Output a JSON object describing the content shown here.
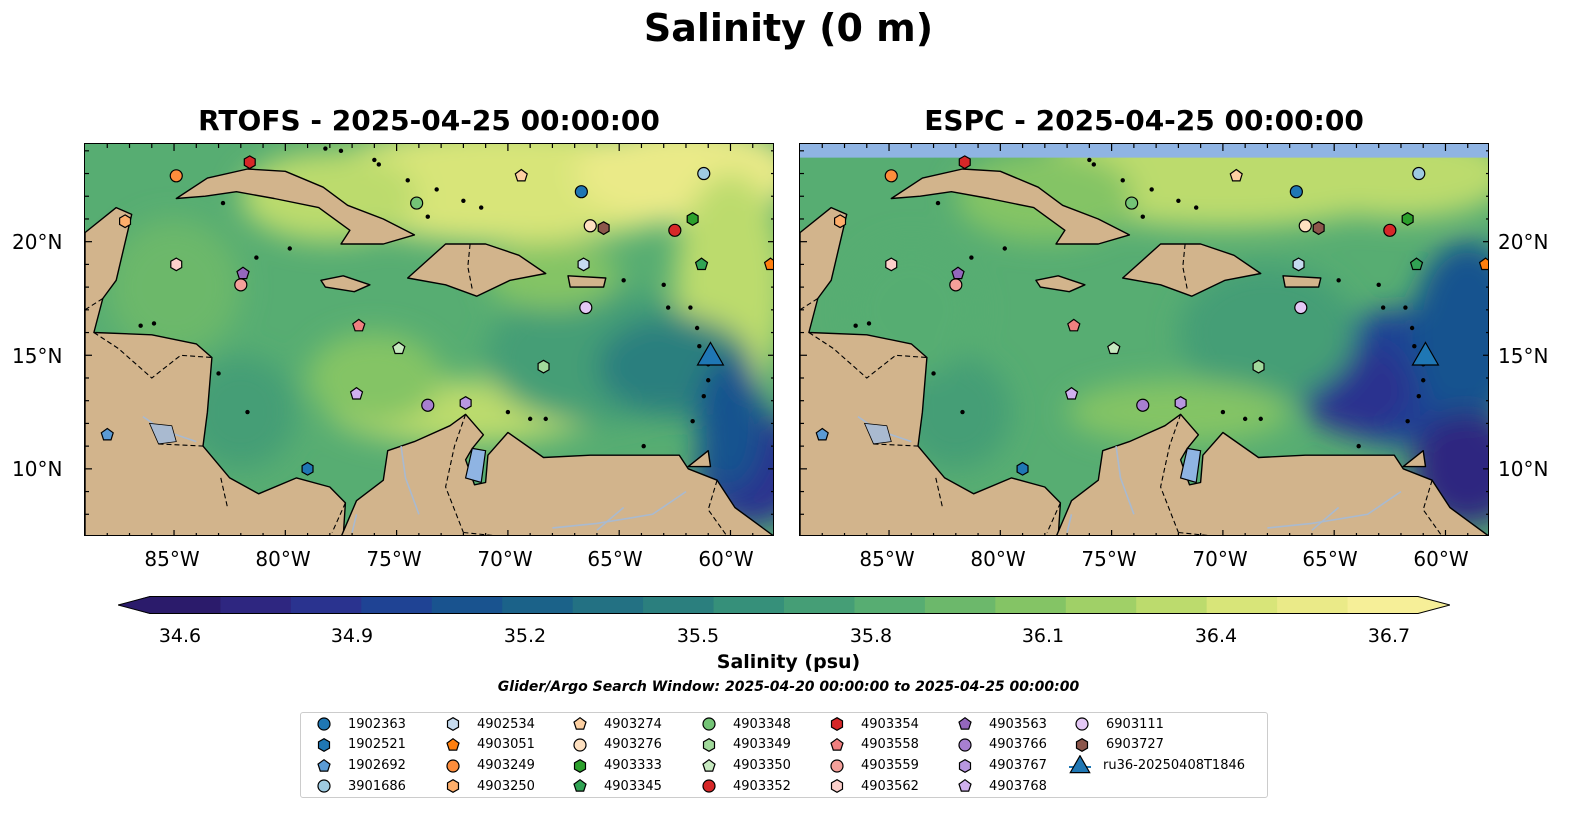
{
  "figure": {
    "suptitle": "Salinity (0 m)",
    "panels": [
      {
        "title": "RTOFS - 2025-04-25 00:00:00"
      },
      {
        "title": "ESPC - 2025-04-25 00:00:00"
      }
    ],
    "lat_ticks": [
      "20°N",
      "15°N",
      "10°N"
    ],
    "lon_ticks": [
      "85°W",
      "80°W",
      "75°W",
      "70°W",
      "65°W",
      "60°W"
    ],
    "colorbar": {
      "ticks": [
        "34.6",
        "34.9",
        "35.2",
        "35.5",
        "35.8",
        "36.1",
        "36.4",
        "36.7"
      ],
      "label": "Salinity (psu)"
    },
    "search_window": "Glider/Argo Search Window: 2025-04-20 00:00:00 to 2025-04-25 00:00:00"
  },
  "colors": {
    "land": "#d2b48c",
    "water_feature": "#8fb4e3",
    "river": "#a9bad0",
    "ocean_base": "#5aa674",
    "deep_low": "#2a1a66"
  },
  "chart_data": {
    "type": "map",
    "variable": "Salinity",
    "units": "psu",
    "depth_m": 0,
    "lon_range": [
      -89,
      -58
    ],
    "lat_range": [
      7,
      24.3
    ],
    "colorbar_range": [
      34.6,
      36.7
    ],
    "colormap": [
      "#2b1b6b",
      "#2e2680",
      "#2a338f",
      "#1f4394",
      "#19538f",
      "#1b6289",
      "#237183",
      "#2b7f7e",
      "#36907a",
      "#459e76",
      "#57ad72",
      "#6cb86b",
      "#84c465",
      "#a0d067",
      "#bcdb6d",
      "#d8e579",
      "#eaea88",
      "#f6ef98"
    ],
    "series": [
      {
        "name": "1902363",
        "marker": "circle",
        "color": "#1f77b4",
        "lon": -66.7,
        "lat": 22.2
      },
      {
        "name": "1902521",
        "marker": "hexagon",
        "color": "#1f77b4",
        "lon": -79.0,
        "lat": 10.0
      },
      {
        "name": "1902692",
        "marker": "pentagon",
        "color": "#5b9bd5",
        "lon": -88.0,
        "lat": 11.5
      },
      {
        "name": "3901686",
        "marker": "circle",
        "color": "#9ecae1",
        "lon": -61.2,
        "lat": 23.0
      },
      {
        "name": "4902534",
        "marker": "hexagon",
        "color": "#c6dbef",
        "lon": -66.6,
        "lat": 19.0
      },
      {
        "name": "4903051",
        "marker": "pentagon",
        "color": "#ff7f0e",
        "lon": -58.2,
        "lat": 19.0
      },
      {
        "name": "4903249",
        "marker": "circle",
        "color": "#fd8d3c",
        "lon": -84.9,
        "lat": 22.9
      },
      {
        "name": "4903250",
        "marker": "hexagon",
        "color": "#fdae6b",
        "lon": -87.2,
        "lat": 20.9
      },
      {
        "name": "4903274",
        "marker": "pentagon",
        "color": "#fdd0a2",
        "lon": -69.4,
        "lat": 22.9
      },
      {
        "name": "4903276",
        "marker": "circle",
        "color": "#fee0c0",
        "lon": -66.3,
        "lat": 20.7
      },
      {
        "name": "4903333",
        "marker": "hexagon",
        "color": "#2ca02c",
        "lon": -61.7,
        "lat": 21.0
      },
      {
        "name": "4903345",
        "marker": "pentagon",
        "color": "#31a354",
        "lon": -61.3,
        "lat": 19.0
      },
      {
        "name": "4903348",
        "marker": "circle",
        "color": "#74c476",
        "lon": -74.1,
        "lat": 21.7
      },
      {
        "name": "4903349",
        "marker": "hexagon",
        "color": "#a1d99b",
        "lon": -68.4,
        "lat": 14.5
      },
      {
        "name": "4903350",
        "marker": "pentagon",
        "color": "#c7e9c0",
        "lon": -74.9,
        "lat": 15.3
      },
      {
        "name": "4903352",
        "marker": "circle",
        "color": "#d62728",
        "lon": -62.5,
        "lat": 20.5
      },
      {
        "name": "4903354",
        "marker": "hexagon",
        "color": "#d62728",
        "lon": -81.6,
        "lat": 23.5
      },
      {
        "name": "4903558",
        "marker": "pentagon",
        "color": "#f08080",
        "lon": -76.7,
        "lat": 16.3
      },
      {
        "name": "4903559",
        "marker": "circle",
        "color": "#f4a09a",
        "lon": -82.0,
        "lat": 18.1
      },
      {
        "name": "4903562",
        "marker": "hexagon",
        "color": "#fcd0cb",
        "lon": -84.9,
        "lat": 19.0
      },
      {
        "name": "4903563",
        "marker": "pentagon",
        "color": "#9467bd",
        "lon": -81.9,
        "lat": 18.6
      },
      {
        "name": "4903766",
        "marker": "circle",
        "color": "#a77fd0",
        "lon": -73.6,
        "lat": 12.8
      },
      {
        "name": "4903767",
        "marker": "hexagon",
        "color": "#b897e0",
        "lon": -71.9,
        "lat": 12.9
      },
      {
        "name": "4903768",
        "marker": "pentagon",
        "color": "#d0b0ee",
        "lon": -76.8,
        "lat": 13.3
      },
      {
        "name": "6903111",
        "marker": "circle",
        "color": "#e4c8f5",
        "lon": -66.5,
        "lat": 17.1
      },
      {
        "name": "6903727",
        "marker": "hexagon",
        "color": "#8c564b",
        "lon": -65.7,
        "lat": 20.6
      },
      {
        "name": "ru36-20250408T1846",
        "marker": "triangle",
        "color": "#1f77b4",
        "lon": -60.9,
        "lat": 14.9
      }
    ]
  }
}
